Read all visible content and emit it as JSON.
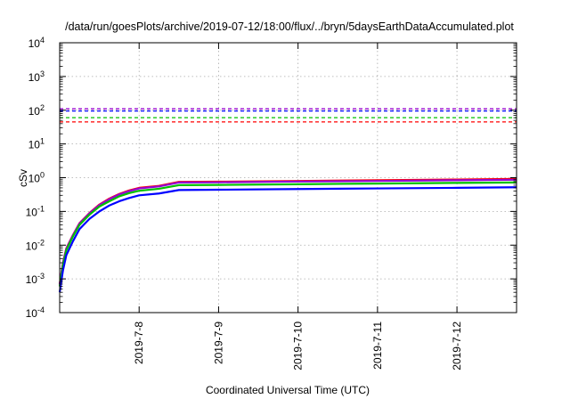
{
  "chart_data": {
    "type": "line",
    "title": "/data/run/goesPlots/archive/2019-07-12/18:00/flux/../bryn/5daysEarthDataAccumulated.plot",
    "xlabel": "Coordinated Universal Time (UTC)",
    "ylabel": "cSv",
    "y_scale": "log",
    "ylim": [
      0.0001,
      10000
    ],
    "xlim": [
      "2019-07-07 00:00",
      "2019-07-12 18:00"
    ],
    "grid": true,
    "legend": "none",
    "y_ticks": [
      {
        "value": 0.0001,
        "base": "10",
        "exp": "-4"
      },
      {
        "value": 0.001,
        "base": "10",
        "exp": "-3"
      },
      {
        "value": 0.01,
        "base": "10",
        "exp": "-2"
      },
      {
        "value": 0.1,
        "base": "10",
        "exp": "-1"
      },
      {
        "value": 1,
        "base": "10",
        "exp": "0"
      },
      {
        "value": 10,
        "base": "10",
        "exp": "1"
      },
      {
        "value": 100,
        "base": "10",
        "exp": "2"
      },
      {
        "value": 1000,
        "base": "10",
        "exp": "3"
      },
      {
        "value": 10000,
        "base": "10",
        "exp": "4"
      }
    ],
    "x_ticks": [
      {
        "value": "2019-07-08 00:00",
        "label": "2019-7-8"
      },
      {
        "value": "2019-07-09 00:00",
        "label": "2019-7-9"
      },
      {
        "value": "2019-07-10 00:00",
        "label": "2019-7-10"
      },
      {
        "value": "2019-07-11 00:00",
        "label": "2019-7-11"
      },
      {
        "value": "2019-07-12 00:00",
        "label": "2019-7-12"
      }
    ],
    "reference_lines": [
      {
        "value": 110,
        "color": "#9400d3"
      },
      {
        "value": 95,
        "color": "#0000ff"
      },
      {
        "value": 60,
        "color": "#00c000"
      },
      {
        "value": 45,
        "color": "#ff0000"
      }
    ],
    "series": [
      {
        "color": "#ff0000",
        "points": [
          [
            "2019-07-07 00:00",
            0.0007
          ],
          [
            "2019-07-07 01:00",
            0.003
          ],
          [
            "2019-07-07 02:00",
            0.008
          ],
          [
            "2019-07-07 04:00",
            0.02
          ],
          [
            "2019-07-07 06:00",
            0.045
          ],
          [
            "2019-07-07 09:00",
            0.09
          ],
          [
            "2019-07-07 12:00",
            0.16
          ],
          [
            "2019-07-07 15:00",
            0.24
          ],
          [
            "2019-07-07 18:00",
            0.33
          ],
          [
            "2019-07-07 21:00",
            0.42
          ],
          [
            "2019-07-08 00:00",
            0.5
          ],
          [
            "2019-07-08 06:00",
            0.57
          ],
          [
            "2019-07-08 12:00",
            0.75
          ],
          [
            "2019-07-09 00:00",
            0.76
          ],
          [
            "2019-07-10 00:00",
            0.8
          ],
          [
            "2019-07-11 00:00",
            0.84
          ],
          [
            "2019-07-12 00:00",
            0.88
          ],
          [
            "2019-07-12 18:00",
            0.92
          ]
        ]
      },
      {
        "color": "#9400d3",
        "points": [
          [
            "2019-07-07 00:00",
            0.00068
          ],
          [
            "2019-07-07 01:00",
            0.0029
          ],
          [
            "2019-07-07 02:00",
            0.0078
          ],
          [
            "2019-07-07 04:00",
            0.0195
          ],
          [
            "2019-07-07 06:00",
            0.044
          ],
          [
            "2019-07-07 09:00",
            0.088
          ],
          [
            "2019-07-07 12:00",
            0.155
          ],
          [
            "2019-07-07 15:00",
            0.23
          ],
          [
            "2019-07-07 18:00",
            0.32
          ],
          [
            "2019-07-07 21:00",
            0.4
          ],
          [
            "2019-07-08 00:00",
            0.48
          ],
          [
            "2019-07-08 06:00",
            0.55
          ],
          [
            "2019-07-08 12:00",
            0.72
          ],
          [
            "2019-07-09 00:00",
            0.73
          ],
          [
            "2019-07-10 00:00",
            0.77
          ],
          [
            "2019-07-11 00:00",
            0.8
          ],
          [
            "2019-07-12 00:00",
            0.84
          ],
          [
            "2019-07-12 18:00",
            0.87
          ]
        ]
      },
      {
        "color": "#00c000",
        "points": [
          [
            "2019-07-07 00:00",
            0.0006
          ],
          [
            "2019-07-07 01:00",
            0.0026
          ],
          [
            "2019-07-07 02:00",
            0.007
          ],
          [
            "2019-07-07 04:00",
            0.018
          ],
          [
            "2019-07-07 06:00",
            0.04
          ],
          [
            "2019-07-07 09:00",
            0.08
          ],
          [
            "2019-07-07 12:00",
            0.14
          ],
          [
            "2019-07-07 15:00",
            0.2
          ],
          [
            "2019-07-07 18:00",
            0.28
          ],
          [
            "2019-07-07 21:00",
            0.35
          ],
          [
            "2019-07-08 00:00",
            0.41
          ],
          [
            "2019-07-08 06:00",
            0.47
          ],
          [
            "2019-07-08 12:00",
            0.6
          ],
          [
            "2019-07-09 00:00",
            0.61
          ],
          [
            "2019-07-10 00:00",
            0.64
          ],
          [
            "2019-07-11 00:00",
            0.67
          ],
          [
            "2019-07-12 00:00",
            0.7
          ],
          [
            "2019-07-12 18:00",
            0.72
          ]
        ]
      },
      {
        "color": "#0000ff",
        "points": [
          [
            "2019-07-07 00:00",
            0.0004
          ],
          [
            "2019-07-07 01:00",
            0.0018
          ],
          [
            "2019-07-07 02:00",
            0.005
          ],
          [
            "2019-07-07 04:00",
            0.013
          ],
          [
            "2019-07-07 06:00",
            0.03
          ],
          [
            "2019-07-07 09:00",
            0.06
          ],
          [
            "2019-07-07 12:00",
            0.1
          ],
          [
            "2019-07-07 15:00",
            0.15
          ],
          [
            "2019-07-07 18:00",
            0.2
          ],
          [
            "2019-07-07 21:00",
            0.25
          ],
          [
            "2019-07-08 00:00",
            0.3
          ],
          [
            "2019-07-08 06:00",
            0.34
          ],
          [
            "2019-07-08 12:00",
            0.43
          ],
          [
            "2019-07-09 00:00",
            0.44
          ],
          [
            "2019-07-10 00:00",
            0.46
          ],
          [
            "2019-07-11 00:00",
            0.48
          ],
          [
            "2019-07-12 00:00",
            0.5
          ],
          [
            "2019-07-12 18:00",
            0.52
          ]
        ]
      }
    ]
  }
}
